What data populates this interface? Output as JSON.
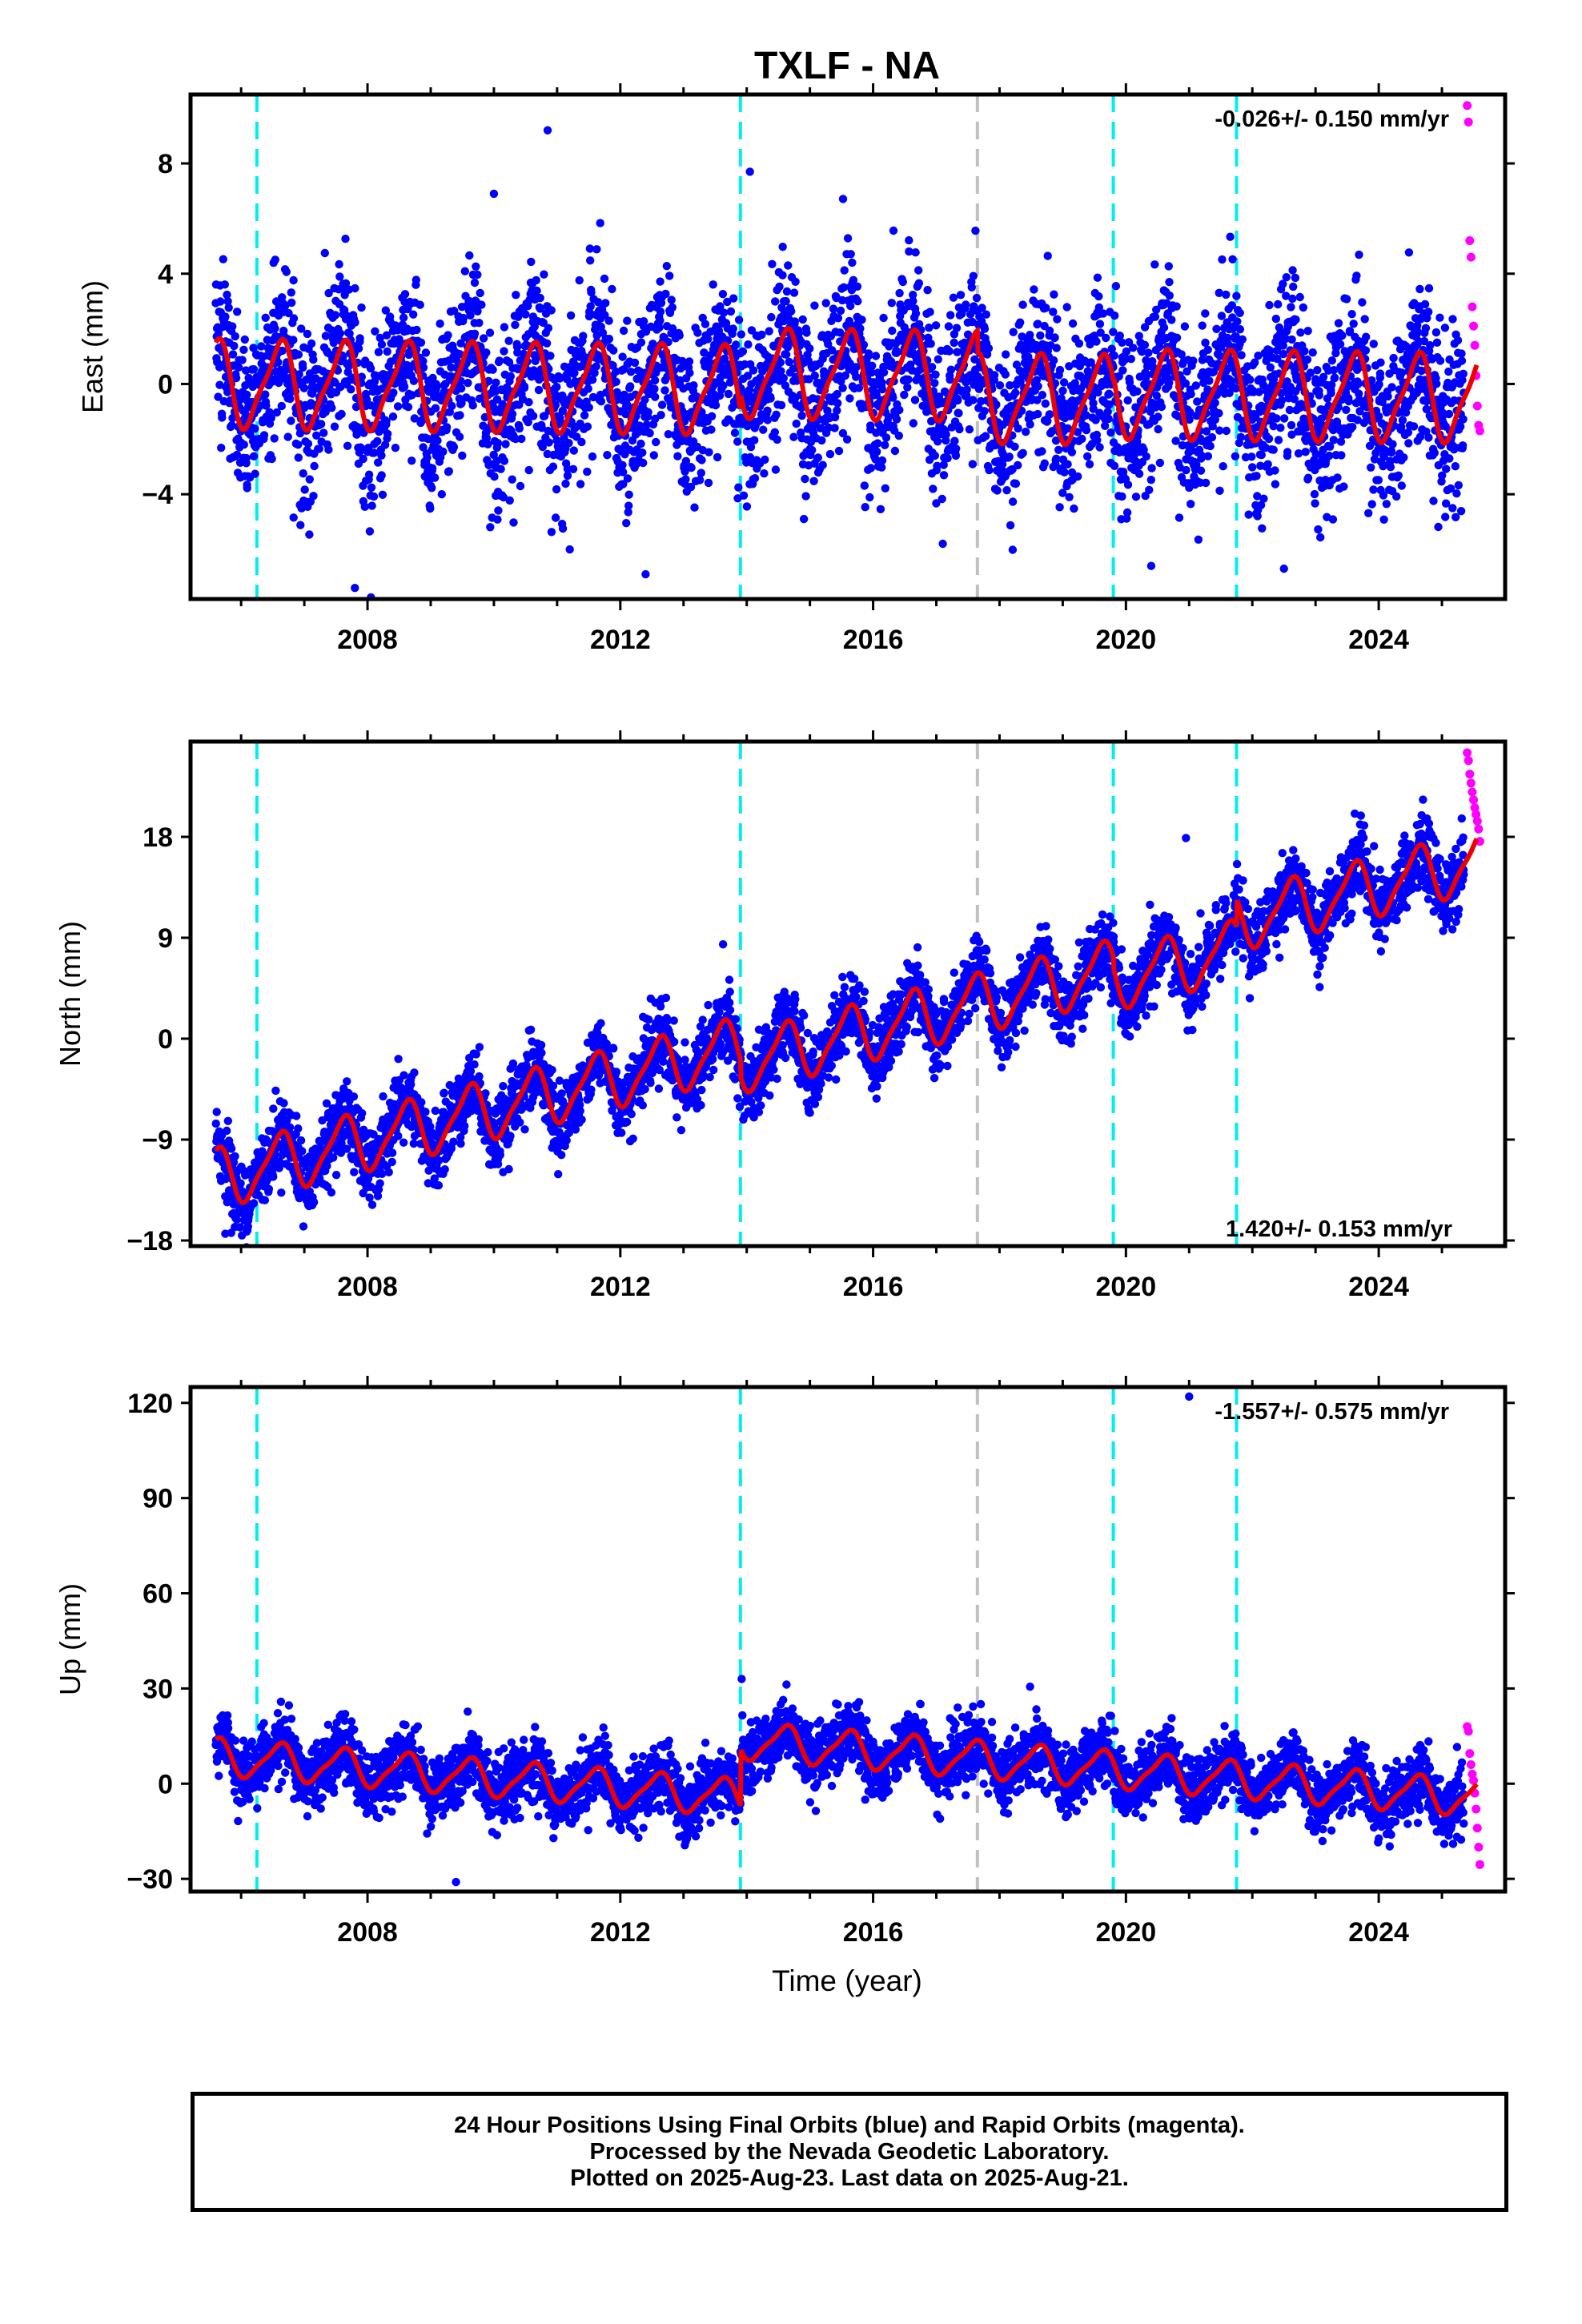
{
  "title": "TXLF - NA",
  "xlabel": "Time (year)",
  "colors": {
    "final_orbits": "#0000ff",
    "rapid_orbits": "#ff00ff",
    "model_fit": "#ee0000",
    "equipment_change": "#00eeee",
    "other_event": "#c0c0c0"
  },
  "footer": {
    "line1": "24 Hour Positions Using Final Orbits (blue) and Rapid Orbits (magenta).",
    "line2": "Processed by the Nevada Geodetic Laboratory.",
    "line3": "Plotted on 2025-Aug-23. Last data on 2025-Aug-21."
  },
  "chart_data": [
    {
      "type": "scatter",
      "ylabel": "East (mm)",
      "rate_label": "-0.026+/- 0.150 mm/yr",
      "rate_position": "top-right",
      "xlim": [
        2005.2,
        2026.0
      ],
      "ylim": [
        -7.8,
        10.5
      ],
      "yticks": [
        -4,
        0,
        4,
        8
      ],
      "xticks": [
        2008,
        2012,
        2016,
        2020,
        2024
      ],
      "vlines_cyan": [
        2006.25,
        2013.9,
        2019.8,
        2021.75
      ],
      "vlines_gray": [
        2017.65
      ],
      "series": [
        {
          "name": "Final Orbits (blue)",
          "x_range": [
            2005.6,
            2025.35
          ],
          "rate_mm_per_yr": -0.026,
          "offset": 0.0,
          "annual_amp": 1.5,
          "scatter": 1.5,
          "jumps": [
            [
              2013.9,
              0.6
            ],
            [
              2017.65,
              -0.8
            ],
            [
              2019.8,
              0.2
            ]
          ]
        },
        {
          "name": "Rapid Orbits (magenta)",
          "x": [
            2025.4,
            2025.42,
            2025.44,
            2025.46,
            2025.48,
            2025.5,
            2025.52,
            2025.54,
            2025.56,
            2025.58,
            2025.6
          ],
          "y": [
            10.1,
            9.5,
            5.2,
            4.6,
            2.8,
            2.1,
            1.4,
            0.3,
            -0.8,
            -1.5,
            -1.7
          ]
        }
      ],
      "outliers": [
        [
          2010.85,
          9.2
        ],
        [
          2014.05,
          7.7
        ],
        [
          2010.0,
          6.9
        ],
        [
          2007.8,
          -7.4
        ],
        [
          2012.4,
          -6.9
        ],
        [
          2020.4,
          -6.6
        ],
        [
          2022.5,
          -6.7
        ],
        [
          2011.2,
          -6.0
        ]
      ],
      "model_fit": {
        "annual_amp": 1.6,
        "rate_mm_per_yr": -0.026
      }
    },
    {
      "type": "scatter",
      "ylabel": "North (mm)",
      "rate_label": "1.420+/- 0.153 mm/yr",
      "rate_position": "bottom-right",
      "xlim": [
        2005.2,
        2026.0
      ],
      "ylim": [
        -18.5,
        26.5
      ],
      "yticks": [
        -18,
        -9,
        0,
        9,
        18
      ],
      "xticks": [
        2008,
        2012,
        2016,
        2020,
        2024
      ],
      "vlines_cyan": [
        2006.25,
        2013.9,
        2019.8,
        2021.75
      ],
      "vlines_gray": [
        2017.65
      ],
      "series": [
        {
          "name": "Final Orbits (blue)",
          "x_range": [
            2005.6,
            2025.35
          ],
          "rate_mm_per_yr": 1.42,
          "offset": -12.5,
          "annual_amp": 2.5,
          "scatter": 1.6,
          "jumps": [
            [
              2013.9,
              -1.5
            ],
            [
              2019.8,
              -1.0
            ],
            [
              2021.75,
              2.5
            ]
          ]
        },
        {
          "name": "Rapid Orbits (magenta)",
          "x": [
            2025.4,
            2025.42,
            2025.44,
            2025.46,
            2025.48,
            2025.5,
            2025.52,
            2025.54,
            2025.56,
            2025.58,
            2025.6
          ],
          "y": [
            25.5,
            24.8,
            23.6,
            22.8,
            22.0,
            21.3,
            20.6,
            20.0,
            19.4,
            18.7,
            17.6
          ]
        }
      ],
      "outliers": [
        [
          2020.95,
          17.9
        ],
        [
          2005.75,
          -17.4
        ],
        [
          2005.9,
          -16.8
        ]
      ],
      "model_fit": {
        "annual_amp": 2.6,
        "rate_mm_per_yr": 1.42
      }
    },
    {
      "type": "scatter",
      "ylabel": "Up (mm)",
      "rate_label": "-1.557+/- 0.575 mm/yr",
      "rate_position": "top-right",
      "xlim": [
        2005.2,
        2026.0
      ],
      "ylim": [
        -34,
        125
      ],
      "yticks": [
        -30,
        0,
        30,
        60,
        90,
        120
      ],
      "xticks": [
        2008,
        2012,
        2016,
        2020,
        2024
      ],
      "vlines_cyan": [
        2006.25,
        2013.9,
        2019.8,
        2021.75
      ],
      "vlines_gray": [
        2017.65
      ],
      "series": [
        {
          "name": "Final Orbits (blue)",
          "x_range": [
            2005.6,
            2025.35
          ],
          "rate_mm_per_yr": -1.557,
          "offset": 8.5,
          "annual_amp": 5.5,
          "scatter": 5.0,
          "jumps": [
            [
              2013.9,
              18.0
            ]
          ]
        },
        {
          "name": "Rapid Orbits (magenta)",
          "x": [
            2025.4,
            2025.42,
            2025.44,
            2025.46,
            2025.48,
            2025.5,
            2025.52,
            2025.54,
            2025.56,
            2025.58,
            2025.6
          ],
          "y": [
            18.0,
            16.5,
            9.5,
            6.0,
            3.0,
            1.0,
            -3.0,
            -8.0,
            -14.0,
            -20.0,
            -25.5
          ]
        }
      ],
      "outliers": [
        [
          2013.92,
          33.0
        ],
        [
          2021.0,
          122.0
        ],
        [
          2009.4,
          -31.0
        ]
      ],
      "model_fit": {
        "annual_amp": 5.5,
        "rate_mm_per_yr": -1.557
      }
    }
  ]
}
